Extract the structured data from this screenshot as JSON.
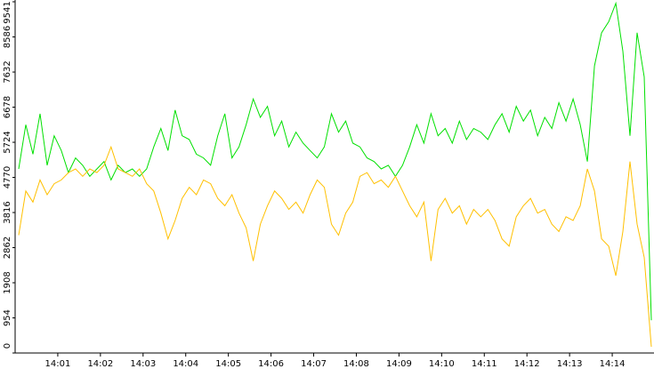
{
  "chart_data": {
    "type": "line",
    "x": [
      "14:00:05",
      "14:00:15",
      "14:00:25",
      "14:00:35",
      "14:00:45",
      "14:00:55",
      "14:01:05",
      "14:01:15",
      "14:01:25",
      "14:01:35",
      "14:01:45",
      "14:01:55",
      "14:02:05",
      "14:02:15",
      "14:02:25",
      "14:02:35",
      "14:02:45",
      "14:02:55",
      "14:03:05",
      "14:03:15",
      "14:03:25",
      "14:03:35",
      "14:03:45",
      "14:03:55",
      "14:04:05",
      "14:04:15",
      "14:04:25",
      "14:04:35",
      "14:04:45",
      "14:04:55",
      "14:05:05",
      "14:05:15",
      "14:05:25",
      "14:05:35",
      "14:05:45",
      "14:05:55",
      "14:06:05",
      "14:06:15",
      "14:06:25",
      "14:06:35",
      "14:06:45",
      "14:06:55",
      "14:07:05",
      "14:07:15",
      "14:07:25",
      "14:07:35",
      "14:07:45",
      "14:07:55",
      "14:08:05",
      "14:08:15",
      "14:08:25",
      "14:08:35",
      "14:08:45",
      "14:08:55",
      "14:09:05",
      "14:09:15",
      "14:09:25",
      "14:09:35",
      "14:09:45",
      "14:09:55",
      "14:10:05",
      "14:10:15",
      "14:10:25",
      "14:10:35",
      "14:10:45",
      "14:10:55",
      "14:11:05",
      "14:11:15",
      "14:11:25",
      "14:11:35",
      "14:11:45",
      "14:11:55",
      "14:12:05",
      "14:12:15",
      "14:12:25",
      "14:12:35",
      "14:12:45",
      "14:12:55",
      "14:13:05",
      "14:13:15",
      "14:13:25",
      "14:13:35",
      "14:13:45",
      "14:13:55",
      "14:14:05",
      "14:14:15",
      "14:14:25",
      "14:14:35",
      "14:14:45",
      "14:14:55"
    ],
    "series": [
      {
        "color": "#00e000",
        "values": [
          5000,
          6200,
          5400,
          6500,
          5100,
          5900,
          5500,
          4900,
          5300,
          5100,
          4800,
          5000,
          5200,
          4700,
          5100,
          4900,
          5000,
          4800,
          5000,
          5600,
          6100,
          5500,
          6600,
          5900,
          5800,
          5400,
          5300,
          5100,
          5900,
          6500,
          5300,
          5600,
          6200,
          6900,
          6400,
          6700,
          5900,
          6300,
          5600,
          6000,
          5700,
          5500,
          5300,
          5600,
          6500,
          6000,
          6300,
          5700,
          5600,
          5300,
          5200,
          5000,
          5100,
          4800,
          5100,
          5600,
          6200,
          5700,
          6500,
          5900,
          6100,
          5700,
          6300,
          5800,
          6100,
          6000,
          5800,
          6200,
          6500,
          6000,
          6700,
          6300,
          6600,
          5900,
          6400,
          6100,
          6800,
          6300,
          6900,
          6200,
          5200,
          7800,
          8700,
          9000,
          9500,
          8200,
          5900,
          8700,
          7500,
          890
        ]
      },
      {
        "color": "#ffc000",
        "values": [
          3200,
          4400,
          4100,
          4700,
          4300,
          4600,
          4700,
          4900,
          5000,
          4800,
          5000,
          4900,
          5100,
          5600,
          5000,
          4900,
          4800,
          5000,
          4600,
          4400,
          3800,
          3100,
          3600,
          4200,
          4500,
          4300,
          4700,
          4600,
          4200,
          4000,
          4300,
          3800,
          3400,
          2500,
          3500,
          4000,
          4400,
          4200,
          3900,
          4100,
          3800,
          4300,
          4700,
          4500,
          3500,
          3200,
          3800,
          4100,
          4800,
          4900,
          4600,
          4700,
          4500,
          4800,
          4400,
          4000,
          3700,
          4100,
          2500,
          3900,
          4200,
          3800,
          4000,
          3500,
          3900,
          3700,
          3900,
          3600,
          3100,
          2900,
          3700,
          4000,
          4200,
          3800,
          3900,
          3500,
          3300,
          3700,
          3600,
          4000,
          5000,
          4400,
          3100,
          2900,
          2100,
          3300,
          5200,
          3500,
          2600,
          170
        ]
      }
    ],
    "xlim": [
      "14:00",
      "14:15"
    ],
    "xticks": [
      "14:01",
      "14:02",
      "14:03",
      "14:04",
      "14:05",
      "14:06",
      "14:07",
      "14:08",
      "14:09",
      "14:10",
      "14:11",
      "14:12",
      "14:13",
      "14:14"
    ],
    "ylim": [
      0,
      9541
    ],
    "yticks": [
      0,
      954,
      1908,
      2862,
      3816,
      4770,
      5724,
      6678,
      7632,
      8586,
      9541
    ]
  }
}
